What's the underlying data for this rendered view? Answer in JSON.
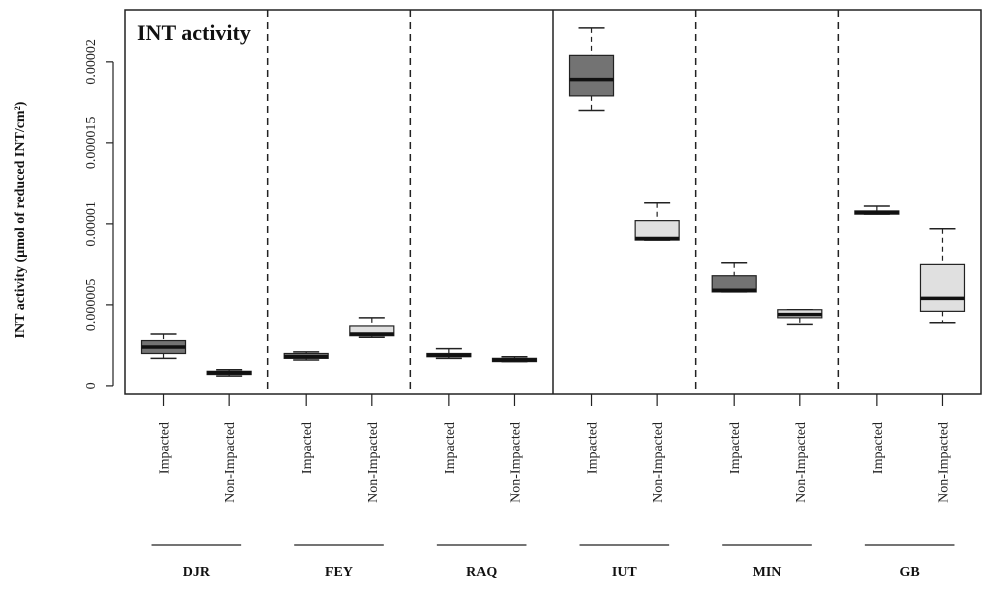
{
  "chart_data": {
    "type": "box",
    "title": "INT activity",
    "ylabel": "INT activity (µmol of reduced INT/cm²)",
    "xlabel": "",
    "ylim": [
      -5e-07,
      2.32e-05
    ],
    "yticks": [
      {
        "value": 0,
        "label": "0"
      },
      {
        "value": 5e-06,
        "label": "0.000005"
      },
      {
        "value": 1e-05,
        "label": "0.00001"
      },
      {
        "value": 1.5e-05,
        "label": "0.000015"
      },
      {
        "value": 2e-05,
        "label": "0.00002"
      }
    ],
    "category_labels": [
      "Impacted",
      "Non-Impacted"
    ],
    "groups": [
      {
        "name": "DJR",
        "boxes": [
          {
            "category": "Impacted",
            "min": 1.7e-06,
            "q1": 2e-06,
            "median": 2.4e-06,
            "q3": 2.8e-06,
            "max": 3.2e-06,
            "color": "#737373"
          },
          {
            "category": "Non-Impacted",
            "min": 6e-07,
            "q1": 7e-07,
            "median": 8e-07,
            "q3": 9e-07,
            "max": 1e-06,
            "color": "#e0e0e0"
          }
        ]
      },
      {
        "name": "FEY",
        "boxes": [
          {
            "category": "Impacted",
            "min": 1.6e-06,
            "q1": 1.7e-06,
            "median": 1.8e-06,
            "q3": 2e-06,
            "max": 2.1e-06,
            "color": "#737373"
          },
          {
            "category": "Non-Impacted",
            "min": 3e-06,
            "q1": 3.1e-06,
            "median": 3.2e-06,
            "q3": 3.7e-06,
            "max": 4.2e-06,
            "color": "#e0e0e0"
          }
        ]
      },
      {
        "name": "RAQ",
        "boxes": [
          {
            "category": "Impacted",
            "min": 1.7e-06,
            "q1": 1.8e-06,
            "median": 1.9e-06,
            "q3": 2e-06,
            "max": 2.3e-06,
            "color": "#737373"
          },
          {
            "category": "Non-Impacted",
            "min": 1.5e-06,
            "q1": 1.5e-06,
            "median": 1.6e-06,
            "q3": 1.7e-06,
            "max": 1.8e-06,
            "color": "#e0e0e0"
          }
        ]
      },
      {
        "name": "IUT",
        "boxes": [
          {
            "category": "Impacted",
            "min": 1.7e-05,
            "q1": 1.79e-05,
            "median": 1.89e-05,
            "q3": 2.04e-05,
            "max": 2.21e-05,
            "color": "#737373"
          },
          {
            "category": "Non-Impacted",
            "min": 9e-06,
            "q1": 9e-06,
            "median": 9.1e-06,
            "q3": 1.02e-05,
            "max": 1.13e-05,
            "color": "#e0e0e0"
          }
        ]
      },
      {
        "name": "MIN",
        "boxes": [
          {
            "category": "Impacted",
            "min": 5.8e-06,
            "q1": 5.8e-06,
            "median": 5.9e-06,
            "q3": 6.8e-06,
            "max": 7.6e-06,
            "color": "#737373"
          },
          {
            "category": "Non-Impacted",
            "min": 3.8e-06,
            "q1": 4.2e-06,
            "median": 4.4e-06,
            "q3": 4.7e-06,
            "max": 4.7e-06,
            "color": "#e0e0e0"
          }
        ]
      },
      {
        "name": "GB",
        "boxes": [
          {
            "category": "Impacted",
            "min": 1.06e-05,
            "q1": 1.06e-05,
            "median": 1.07e-05,
            "q3": 1.08e-05,
            "max": 1.11e-05,
            "color": "#737373"
          },
          {
            "category": "Non-Impacted",
            "min": 3.9e-06,
            "q1": 4.6e-06,
            "median": 5.4e-06,
            "q3": 7.5e-06,
            "max": 9.7e-06,
            "color": "#e0e0e0"
          }
        ]
      }
    ],
    "separators": [
      "dashed",
      "dashed",
      "solid",
      "dashed",
      "dashed"
    ],
    "grid": false,
    "legend": "none"
  }
}
